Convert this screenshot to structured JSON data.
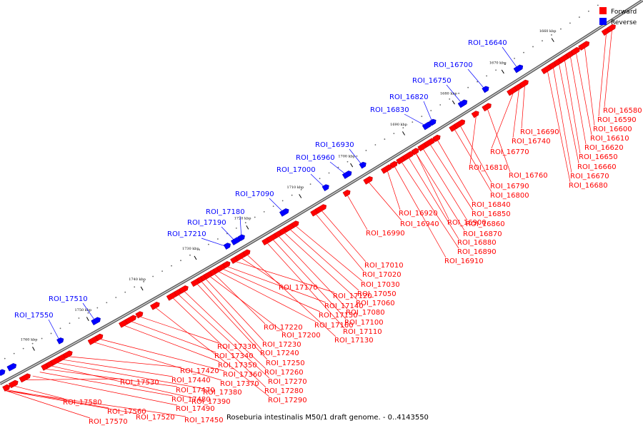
{
  "caption": "Roseburia intestinalis M50/1 draft genome. - 0..4143550",
  "legend": [
    {
      "label": "Forward",
      "color": "#ff0000"
    },
    {
      "label": "Reverse",
      "color": "#0000ff"
    }
  ],
  "colors": {
    "forward": "#ff0000",
    "reverse": "#0000ff",
    "backbone": "#888888"
  },
  "ticks": [
    "1660 kbp",
    "1670 kbp",
    "1680 kbp",
    "1690 kbp",
    "1700 kbp",
    "1710 kbp",
    "1720 kbp",
    "1730 kbp",
    "1740 kbp",
    "1750 kbp",
    "1760 kbp"
  ],
  "reverse_labels": [
    "ROI_16640",
    "ROI_16700",
    "ROI_16750",
    "ROI_16820",
    "ROI_16830",
    "ROI_16930",
    "ROI_16960",
    "ROI_17000",
    "ROI_17090",
    "ROI_17180",
    "ROI_17190",
    "ROI_17210",
    "ROI_17510",
    "ROI_17550"
  ],
  "forward_labels": [
    "ROI_16580",
    "ROI_16590",
    "ROI_16600",
    "ROI_16610",
    "ROI_16620",
    "ROI_16650",
    "ROI_16660",
    "ROI_16670",
    "ROI_16680",
    "ROI_16690",
    "ROI_16740",
    "ROI_16770",
    "ROI_16760",
    "ROI_16810",
    "ROI_16790",
    "ROI_16800",
    "ROI_16840",
    "ROI_16850",
    "ROI_16860",
    "ROI_16870",
    "ROI_16880",
    "ROI_16890",
    "ROI_16910",
    "ROI_16920",
    "ROI_16940",
    "ROI_16900",
    "ROI_16990",
    "ROI_17010",
    "ROI_17020",
    "ROI_17030",
    "ROI_17050",
    "ROI_17060",
    "ROI_17080",
    "ROI_17100",
    "ROI_17110",
    "ROI_17130",
    "ROI_17170",
    "ROI_17120",
    "ROI_17140",
    "ROI_17150",
    "ROI_17160",
    "ROI_17220",
    "ROI_17200",
    "ROI_17230",
    "ROI_17240",
    "ROI_17250",
    "ROI_17260",
    "ROI_17270",
    "ROI_17280",
    "ROI_17290",
    "ROI_17330",
    "ROI_17340",
    "ROI_17350",
    "ROI_17360",
    "ROI_17370",
    "ROI_17420",
    "ROI_17440",
    "ROI_17380",
    "ROI_17390",
    "ROI_17470",
    "ROI_17480",
    "ROI_17490",
    "ROI_17530",
    "ROI_17580",
    "ROI_17560",
    "ROI_17570",
    "ROI_17520",
    "ROI_17450"
  ]
}
